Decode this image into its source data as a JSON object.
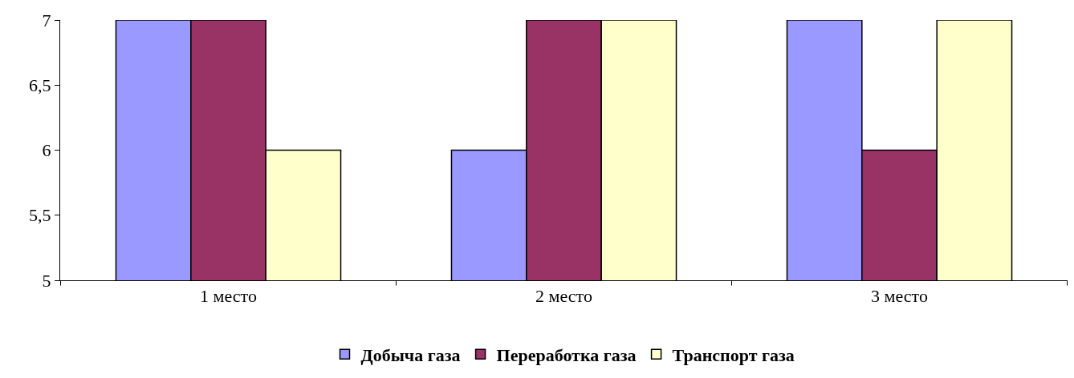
{
  "chart_data": {
    "type": "bar",
    "categories": [
      "1 место",
      "2 место",
      "3 место"
    ],
    "series": [
      {
        "name": "Добыча газа",
        "color": "#9999ff",
        "values": [
          7,
          6,
          7
        ]
      },
      {
        "name": "Переработка газа",
        "color": "#993366",
        "values": [
          7,
          7,
          6
        ]
      },
      {
        "name": "Транспорт газа",
        "color": "#ffffcc",
        "values": [
          6,
          7,
          7
        ]
      }
    ],
    "ylim": [
      5,
      7
    ],
    "yticks": [
      5,
      {
        "value": 5.5,
        "label": "5,5"
      },
      6,
      {
        "value": 6.5,
        "label": "6,5"
      },
      7
    ],
    "grid": false,
    "legend": "bottom"
  }
}
